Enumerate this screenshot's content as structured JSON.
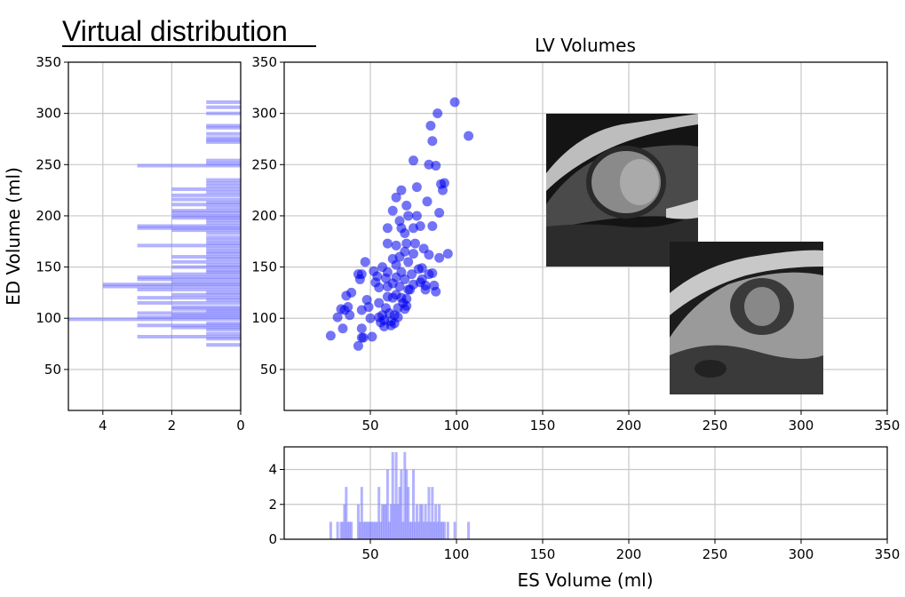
{
  "heading": "Virtual distribution",
  "chart_data": {
    "type": "scatter",
    "title": "LV Volumes",
    "xlabel": "ES Volume (ml)",
    "ylabel": "ED Volume (ml)",
    "xlim": [
      0,
      350
    ],
    "ylim": [
      10,
      350
    ],
    "xticks": [
      50,
      100,
      150,
      200,
      250,
      300,
      350
    ],
    "yticks": [
      50,
      100,
      150,
      200,
      250,
      300,
      350
    ],
    "grid": true,
    "point_color": "#0000ee",
    "points": [
      [
        27,
        83
      ],
      [
        31,
        101
      ],
      [
        33,
        109
      ],
      [
        34,
        90
      ],
      [
        35,
        108
      ],
      [
        36,
        122
      ],
      [
        37,
        111
      ],
      [
        38,
        103
      ],
      [
        39,
        125
      ],
      [
        43,
        143
      ],
      [
        44,
        138
      ],
      [
        45,
        143
      ],
      [
        45,
        108
      ],
      [
        45,
        90
      ],
      [
        43,
        73
      ],
      [
        45,
        81
      ],
      [
        46,
        81
      ],
      [
        47,
        155
      ],
      [
        48,
        118
      ],
      [
        49,
        111
      ],
      [
        50,
        100
      ],
      [
        51,
        82
      ],
      [
        52,
        146
      ],
      [
        53,
        135
      ],
      [
        54,
        141
      ],
      [
        55,
        130
      ],
      [
        55,
        115
      ],
      [
        55,
        101
      ],
      [
        56,
        96
      ],
      [
        57,
        150
      ],
      [
        57,
        103
      ],
      [
        58,
        98
      ],
      [
        58,
        92
      ],
      [
        59,
        139
      ],
      [
        59,
        110
      ],
      [
        60,
        188
      ],
      [
        60,
        173
      ],
      [
        60,
        145
      ],
      [
        60,
        131
      ],
      [
        60,
        121
      ],
      [
        61,
        105
      ],
      [
        62,
        97
      ],
      [
        62,
        93
      ],
      [
        63,
        205
      ],
      [
        63,
        158
      ],
      [
        63,
        134
      ],
      [
        63,
        120
      ],
      [
        64,
        103
      ],
      [
        64,
        95
      ],
      [
        65,
        218
      ],
      [
        65,
        171
      ],
      [
        65,
        152
      ],
      [
        65,
        140
      ],
      [
        65,
        123
      ],
      [
        66,
        110
      ],
      [
        66,
        101
      ],
      [
        67,
        195
      ],
      [
        67,
        160
      ],
      [
        67,
        131
      ],
      [
        68,
        225
      ],
      [
        68,
        188
      ],
      [
        68,
        145
      ],
      [
        68,
        120
      ],
      [
        69,
        115
      ],
      [
        70,
        183
      ],
      [
        70,
        165
      ],
      [
        70,
        138
      ],
      [
        70,
        109
      ],
      [
        71,
        210
      ],
      [
        71,
        173
      ],
      [
        71,
        119
      ],
      [
        71,
        112
      ],
      [
        72,
        200
      ],
      [
        72,
        155
      ],
      [
        72,
        128
      ],
      [
        73,
        128
      ],
      [
        74,
        143
      ],
      [
        75,
        254
      ],
      [
        75,
        188
      ],
      [
        75,
        163
      ],
      [
        75,
        133
      ],
      [
        76,
        173
      ],
      [
        77,
        228
      ],
      [
        77,
        200
      ],
      [
        78,
        148
      ],
      [
        79,
        190
      ],
      [
        79,
        135
      ],
      [
        80,
        149
      ],
      [
        80,
        138
      ],
      [
        81,
        168
      ],
      [
        82,
        132
      ],
      [
        82,
        128
      ],
      [
        83,
        214
      ],
      [
        84,
        250
      ],
      [
        84,
        162
      ],
      [
        84,
        143
      ],
      [
        85,
        288
      ],
      [
        86,
        273
      ],
      [
        86,
        190
      ],
      [
        86,
        144
      ],
      [
        87,
        132
      ],
      [
        88,
        249
      ],
      [
        88,
        126
      ],
      [
        89,
        300
      ],
      [
        90,
        203
      ],
      [
        90,
        159
      ],
      [
        91,
        231
      ],
      [
        92,
        225
      ],
      [
        93,
        232
      ],
      [
        95,
        163
      ],
      [
        99,
        311
      ],
      [
        107,
        278
      ]
    ],
    "ed_histogram": {
      "xlim": [
        5,
        0
      ],
      "xticks": [
        4,
        2,
        0
      ],
      "color": "#8080ff",
      "bins": [
        [
          74,
          1
        ],
        [
          80,
          1
        ],
        [
          82,
          3
        ],
        [
          85,
          1
        ],
        [
          89,
          1
        ],
        [
          91,
          2
        ],
        [
          93,
          3
        ],
        [
          95,
          1
        ],
        [
          99,
          5
        ],
        [
          101,
          3
        ],
        [
          103,
          2
        ],
        [
          105,
          3
        ],
        [
          107,
          1
        ],
        [
          109,
          2
        ],
        [
          111,
          2
        ],
        [
          115,
          3
        ],
        [
          118,
          1
        ],
        [
          120,
          3
        ],
        [
          123,
          2
        ],
        [
          125,
          1
        ],
        [
          128,
          3
        ],
        [
          131,
          4
        ],
        [
          133,
          4
        ],
        [
          135,
          2
        ],
        [
          138,
          3
        ],
        [
          140,
          3
        ],
        [
          143,
          2
        ],
        [
          145,
          1
        ],
        [
          147,
          1
        ],
        [
          150,
          2
        ],
        [
          152,
          1
        ],
        [
          155,
          2
        ],
        [
          158,
          1
        ],
        [
          160,
          2
        ],
        [
          163,
          1
        ],
        [
          165,
          1
        ],
        [
          168,
          1
        ],
        [
          171,
          3
        ],
        [
          173,
          1
        ],
        [
          176,
          1
        ],
        [
          179,
          1
        ],
        [
          183,
          1
        ],
        [
          186,
          2
        ],
        [
          188,
          3
        ],
        [
          190,
          3
        ],
        [
          193,
          1
        ],
        [
          196,
          1
        ],
        [
          198,
          2
        ],
        [
          200,
          2
        ],
        [
          203,
          2
        ],
        [
          205,
          2
        ],
        [
          208,
          1
        ],
        [
          211,
          2
        ],
        [
          213,
          1
        ],
        [
          216,
          2
        ],
        [
          220,
          2
        ],
        [
          223,
          1
        ],
        [
          226,
          2
        ],
        [
          229,
          1
        ],
        [
          232,
          1
        ],
        [
          235,
          1
        ],
        [
          249,
          3
        ],
        [
          251,
          1
        ],
        [
          254,
          1
        ],
        [
          272,
          1
        ],
        [
          274,
          1
        ],
        [
          276,
          1
        ],
        [
          280,
          1
        ],
        [
          286,
          1
        ],
        [
          288,
          1
        ],
        [
          300,
          1
        ],
        [
          306,
          1
        ],
        [
          311,
          1
        ]
      ]
    },
    "es_histogram": {
      "ylim": [
        0,
        5.3
      ],
      "yticks": [
        0,
        2,
        4
      ],
      "color": "#8080ff",
      "bins": [
        [
          27,
          1
        ],
        [
          31,
          1
        ],
        [
          33,
          1
        ],
        [
          34,
          1
        ],
        [
          35,
          2
        ],
        [
          36,
          3
        ],
        [
          37,
          1
        ],
        [
          38,
          1
        ],
        [
          39,
          1
        ],
        [
          43,
          2
        ],
        [
          44,
          1
        ],
        [
          45,
          3
        ],
        [
          46,
          1
        ],
        [
          47,
          1
        ],
        [
          48,
          1
        ],
        [
          49,
          1
        ],
        [
          50,
          1
        ],
        [
          51,
          1
        ],
        [
          52,
          1
        ],
        [
          53,
          1
        ],
        [
          54,
          1
        ],
        [
          55,
          3
        ],
        [
          56,
          1
        ],
        [
          57,
          2
        ],
        [
          58,
          2
        ],
        [
          59,
          2
        ],
        [
          60,
          4
        ],
        [
          61,
          1
        ],
        [
          62,
          2
        ],
        [
          63,
          5
        ],
        [
          64,
          2
        ],
        [
          65,
          5
        ],
        [
          66,
          2
        ],
        [
          67,
          3
        ],
        [
          68,
          4
        ],
        [
          69,
          1
        ],
        [
          70,
          5
        ],
        [
          71,
          4
        ],
        [
          72,
          3
        ],
        [
          73,
          1
        ],
        [
          74,
          1
        ],
        [
          75,
          4
        ],
        [
          76,
          1
        ],
        [
          77,
          2
        ],
        [
          78,
          1
        ],
        [
          79,
          2
        ],
        [
          80,
          2
        ],
        [
          81,
          1
        ],
        [
          82,
          2
        ],
        [
          83,
          1
        ],
        [
          84,
          3
        ],
        [
          85,
          1
        ],
        [
          86,
          3
        ],
        [
          87,
          1
        ],
        [
          88,
          2
        ],
        [
          89,
          1
        ],
        [
          90,
          2
        ],
        [
          91,
          1
        ],
        [
          92,
          1
        ],
        [
          93,
          1
        ],
        [
          95,
          1
        ],
        [
          99,
          1
        ],
        [
          107,
          1
        ]
      ]
    }
  }
}
